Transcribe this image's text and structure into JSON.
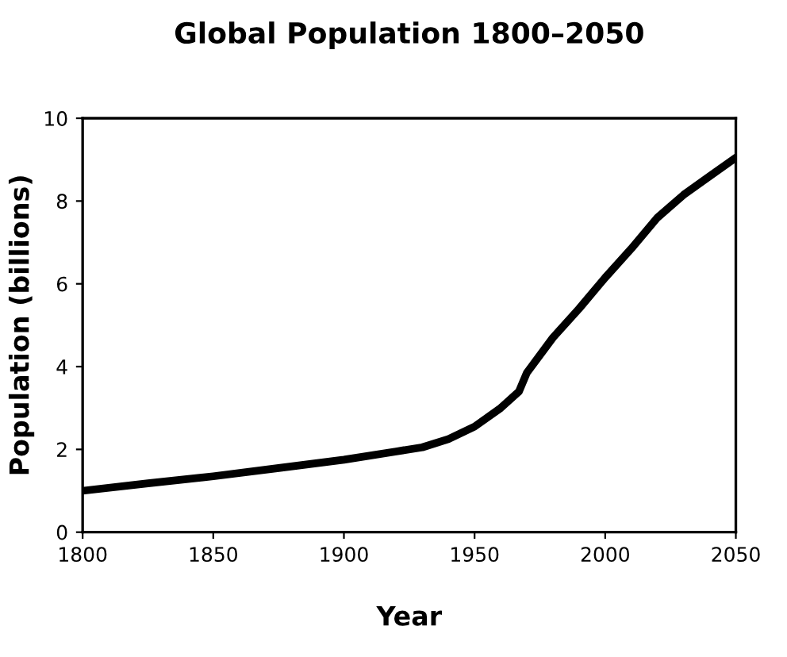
{
  "chart_data": {
    "type": "line",
    "title": "Global Population 1800–2050",
    "xlabel": "Year",
    "ylabel": "Population (billions)",
    "x": [
      1800,
      1825,
      1850,
      1875,
      1900,
      1920,
      1930,
      1940,
      1950,
      1960,
      1967,
      1970,
      1980,
      1990,
      2000,
      2010,
      2020,
      2030,
      2040,
      2050
    ],
    "series": [
      {
        "color": "#000000",
        "values": [
          1.0,
          1.18,
          1.35,
          1.55,
          1.75,
          1.95,
          2.05,
          2.25,
          2.55,
          3.0,
          3.4,
          3.85,
          4.7,
          5.4,
          6.15,
          6.85,
          7.6,
          8.15,
          8.6,
          9.05
        ]
      }
    ],
    "xlim": [
      1800,
      2050
    ],
    "ylim": [
      0,
      10
    ],
    "xticks": [
      1800,
      1850,
      1900,
      1950,
      2000,
      2050
    ],
    "yticks": [
      0,
      2,
      4,
      6,
      8,
      10
    ],
    "grid": false,
    "marker": "none",
    "line_style": "solid"
  }
}
